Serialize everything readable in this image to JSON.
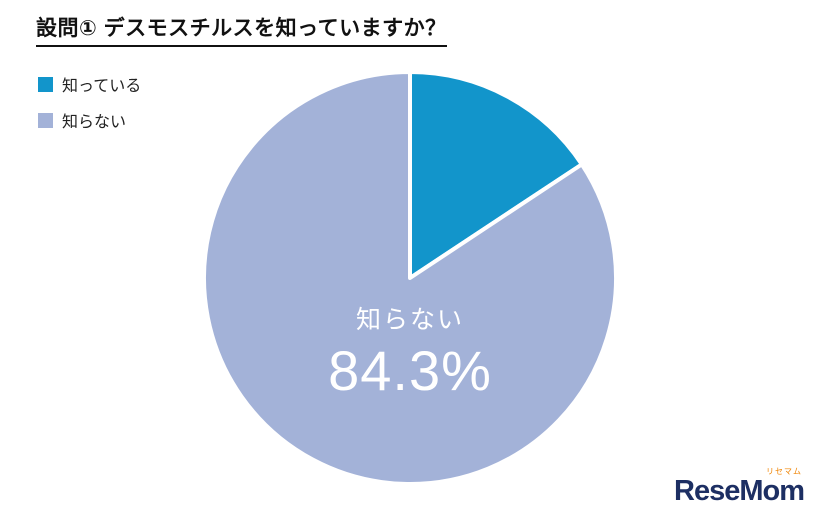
{
  "title": "設問① デスモスチルスを知っていますか？",
  "legend": [
    {
      "label": "知っている",
      "color": "#1295cb"
    },
    {
      "label": "知らない",
      "color": "#a3b2d8"
    }
  ],
  "chart_data": {
    "type": "pie",
    "title": "設問① デスモスチルスを知っていますか？",
    "slices": [
      {
        "label": "知っている",
        "value": 15.7,
        "color": "#1295cb"
      },
      {
        "label": "知らない",
        "value": 84.3,
        "color": "#a3b2d8"
      }
    ],
    "start_angle_deg": -90,
    "direction": "clockwise",
    "legend_position": "top-left",
    "data_labels": [
      {
        "slice": "知らない",
        "text": "知らない",
        "percent": "84.3%"
      }
    ]
  },
  "pie_label": {
    "name": "知らない",
    "value": "84.3%"
  },
  "logo": {
    "text": "ReseMom",
    "sub": "リセマム"
  }
}
